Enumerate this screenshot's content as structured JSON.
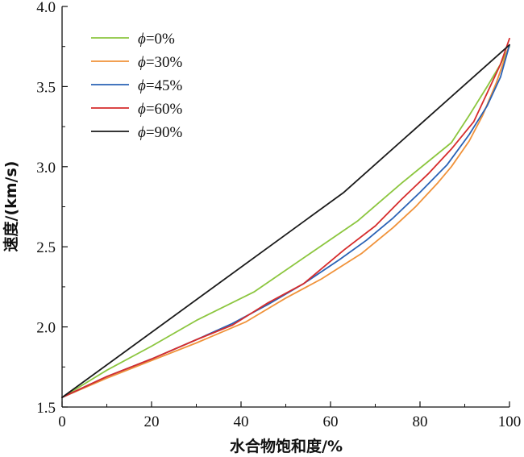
{
  "chart_data": {
    "type": "line",
    "title": "",
    "xlabel": "水合物饱和度/%",
    "ylabel": "速度/(km/s)",
    "xlim": [
      0,
      100
    ],
    "ylim": [
      1.5,
      4.0
    ],
    "xticks": [
      0,
      20,
      40,
      60,
      80,
      100
    ],
    "xtick_labels": [
      "0",
      "20",
      "40",
      "60",
      "80",
      "100"
    ],
    "yticks": [
      1.5,
      2.0,
      2.5,
      3.0,
      3.5,
      4.0
    ],
    "ytick_labels": [
      "1.5",
      "2.0",
      "2.5",
      "3.0",
      "3.5",
      "4.0"
    ],
    "grid": false,
    "legend_position": "top-left",
    "legend_symbol": "ϕ",
    "series": [
      {
        "name": "ϕ=0%",
        "label_symbol": "ϕ",
        "label_value": "=0%",
        "color": "#8cc63f",
        "x": [
          0,
          10,
          20,
          30,
          43,
          55,
          66,
          76,
          87,
          91,
          95,
          98,
          100
        ],
        "y": [
          1.56,
          1.73,
          1.88,
          2.04,
          2.22,
          2.45,
          2.66,
          2.9,
          3.15,
          3.32,
          3.5,
          3.64,
          3.75
        ]
      },
      {
        "name": "ϕ=30%",
        "label_symbol": "ϕ",
        "label_value": "=30%",
        "color": "#f0923a",
        "x": [
          0,
          10,
          20,
          30,
          41,
          50,
          58,
          67,
          74,
          79,
          84,
          87,
          91,
          94,
          97,
          100
        ],
        "y": [
          1.56,
          1.68,
          1.79,
          1.9,
          2.03,
          2.18,
          2.3,
          2.46,
          2.62,
          2.75,
          2.9,
          3.0,
          3.16,
          3.32,
          3.52,
          3.76
        ]
      },
      {
        "name": "ϕ=45%",
        "label_symbol": "ϕ",
        "label_value": "=45%",
        "color": "#2a62b5",
        "x": [
          0,
          10,
          20,
          30,
          38,
          46,
          54,
          62,
          68,
          74,
          80,
          86,
          91,
          95,
          98,
          100
        ],
        "y": [
          1.56,
          1.69,
          1.8,
          1.92,
          2.02,
          2.14,
          2.27,
          2.42,
          2.54,
          2.68,
          2.84,
          3.01,
          3.2,
          3.38,
          3.56,
          3.76
        ]
      },
      {
        "name": "ϕ=60%",
        "label_symbol": "ϕ",
        "label_value": "=60%",
        "color": "#d62c2c",
        "x": [
          0,
          10,
          20,
          30,
          38,
          46,
          54,
          63,
          70,
          76,
          82,
          87,
          92,
          95,
          98,
          100
        ],
        "y": [
          1.56,
          1.69,
          1.8,
          1.92,
          2.01,
          2.15,
          2.27,
          2.48,
          2.63,
          2.8,
          2.96,
          3.11,
          3.28,
          3.46,
          3.64,
          3.8
        ]
      },
      {
        "name": "ϕ=90%",
        "label_symbol": "ϕ",
        "label_value": "=90%",
        "color": "#1a1a1a",
        "x": [
          0,
          63,
          100
        ],
        "y": [
          1.56,
          2.84,
          3.76
        ]
      }
    ]
  }
}
